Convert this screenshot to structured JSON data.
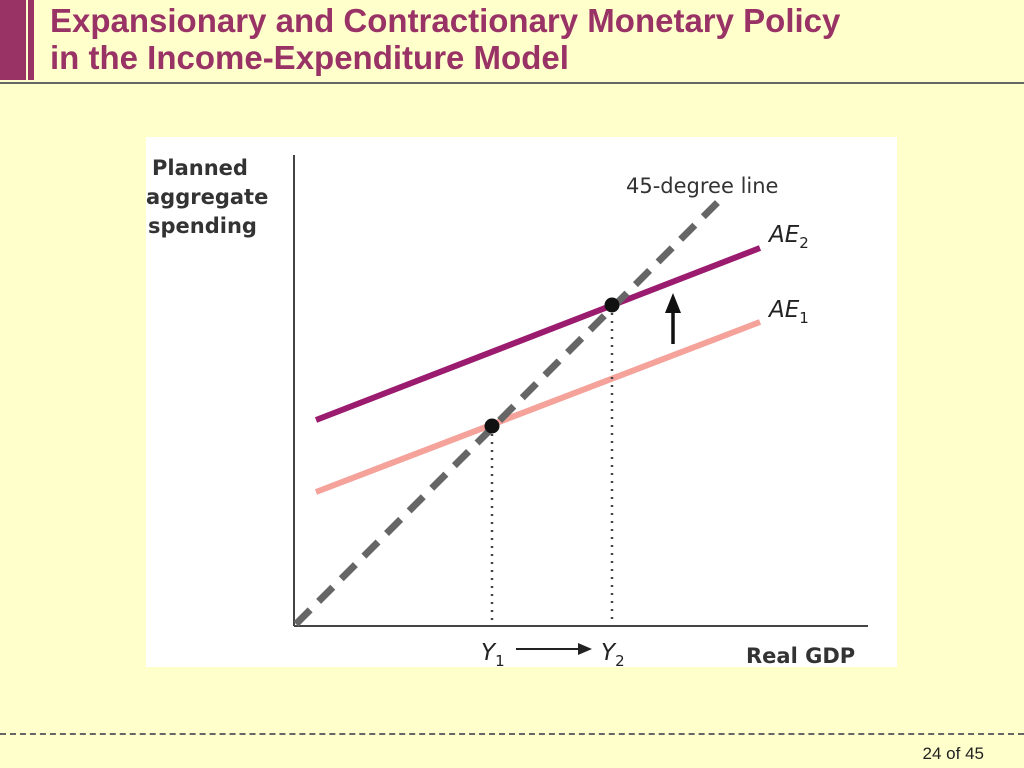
{
  "slide": {
    "title_line1": "Expansionary and Contractionary Monetary Policy",
    "title_line2": "in the Income-Expenditure Model",
    "page_number": "24 of 45",
    "accent_color": "#993366",
    "background_color": "#ffffcc"
  },
  "diagram": {
    "y_axis_label": [
      "Planned",
      "aggregate",
      "spending"
    ],
    "x_axis_label": "Real GDP",
    "line_45_label": "45-degree line",
    "ae1": {
      "name": "AE",
      "subscript": "1",
      "color": "#f4a29a"
    },
    "ae2": {
      "name": "AE",
      "subscript": "2",
      "color": "#9b1b6f"
    },
    "y1": {
      "name": "Y",
      "subscript": "1"
    },
    "y2": {
      "name": "Y",
      "subscript": "2"
    },
    "line_45_color": "#666666",
    "equilibrium_marker_color": "#111111"
  }
}
